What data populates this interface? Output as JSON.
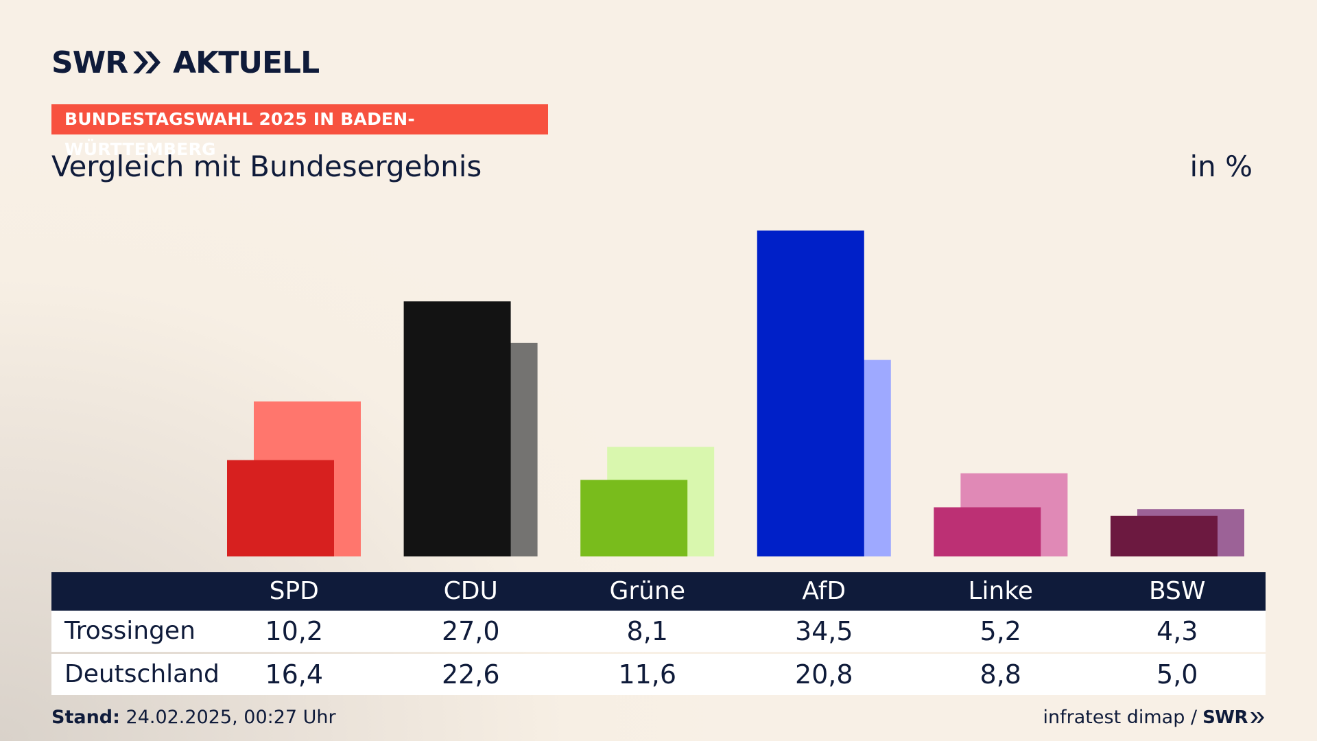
{
  "brand": {
    "swr": "SWR",
    "aktuell": "AKTUELL",
    "chevron": "double-chevron-right-icon"
  },
  "kicker": "BUNDESTAGSWAHL 2025 IN BADEN-WÜRTTEMBERG",
  "subtitle": "Vergleich mit Bundesergebnis",
  "unit": "in %",
  "colors": {
    "kicker_bg": "#f7513f",
    "navy": "#0f1b3a",
    "local": [
      "#d7201f",
      "#131313",
      "#79bc1c",
      "#0020c8",
      "#bc3074",
      "#6c1940"
    ],
    "national": [
      "#ff766d",
      "#747371",
      "#d9f7ae",
      "#9ea9ff",
      "#e089b6",
      "#9c6297"
    ]
  },
  "chart_data": {
    "type": "bar",
    "categories": [
      "SPD",
      "CDU",
      "Grüne",
      "AfD",
      "Linke",
      "BSW"
    ],
    "series": [
      {
        "name": "Trossingen",
        "values": [
          10.2,
          27.0,
          8.1,
          34.5,
          5.2,
          4.3
        ]
      },
      {
        "name": "Deutschland",
        "values": [
          16.4,
          22.6,
          11.6,
          20.8,
          8.8,
          5.0
        ]
      }
    ],
    "ylim": [
      0,
      34.5
    ]
  },
  "table": {
    "headers": [
      "SPD",
      "CDU",
      "Grüne",
      "AfD",
      "Linke",
      "BSW"
    ],
    "rows": [
      {
        "label": "Trossingen",
        "values": [
          "10,2",
          "27,0",
          "8,1",
          "34,5",
          "5,2",
          "4,3"
        ]
      },
      {
        "label": "Deutschland",
        "values": [
          "16,4",
          "22,6",
          "11,6",
          "20,8",
          "8,8",
          "5,0"
        ]
      }
    ]
  },
  "footer": {
    "stand_label": "Stand:",
    "stand_value": "24.02.2025, 00:27 Uhr",
    "source": "infratest dimap /",
    "source_brand": "SWR"
  }
}
